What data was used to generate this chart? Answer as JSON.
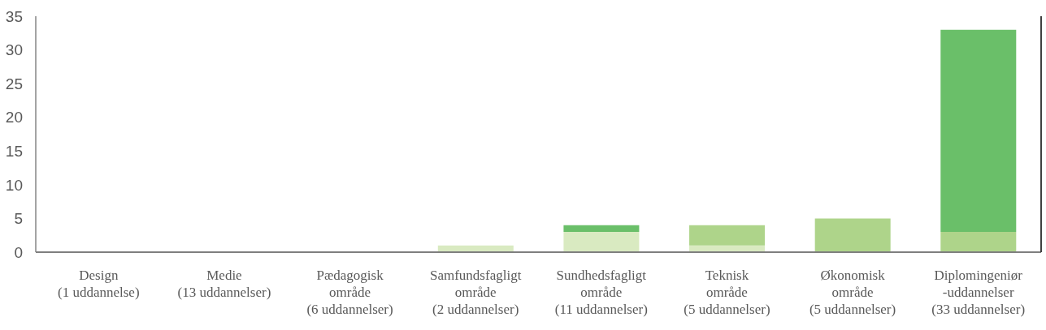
{
  "chart_data": {
    "type": "bar",
    "stacked": true,
    "categories": [
      "Design\n(1 uddannelse)",
      "Medie\n(13 uddannelser)",
      "Pædagogisk\nområde\n(6 uddannelser)",
      "Samfundsfagligt\nområde\n(2 uddannelser)",
      "Sundhedsfagligt\nområde\n(11 uddannelser)",
      "Teknisk\nområde\n(5 uddannelser)",
      "Økonomisk\nområde\n(5 uddannelser)",
      "Diplomingeniør\n-uddannelser\n(33 uddannelser)"
    ],
    "series": [
      {
        "color": "#d9eac1",
        "values": [
          0,
          0,
          0,
          1,
          3,
          1,
          0,
          0
        ]
      },
      {
        "color": "#aed48a",
        "values": [
          0,
          0,
          0,
          0,
          0,
          3,
          5,
          3
        ]
      },
      {
        "color": "#6abf69",
        "values": [
          0,
          0,
          0,
          0,
          1,
          0,
          0,
          30
        ]
      }
    ],
    "ylim": [
      0,
      35
    ],
    "yticks": [
      0,
      5,
      10,
      15,
      20,
      25,
      30,
      35
    ]
  }
}
